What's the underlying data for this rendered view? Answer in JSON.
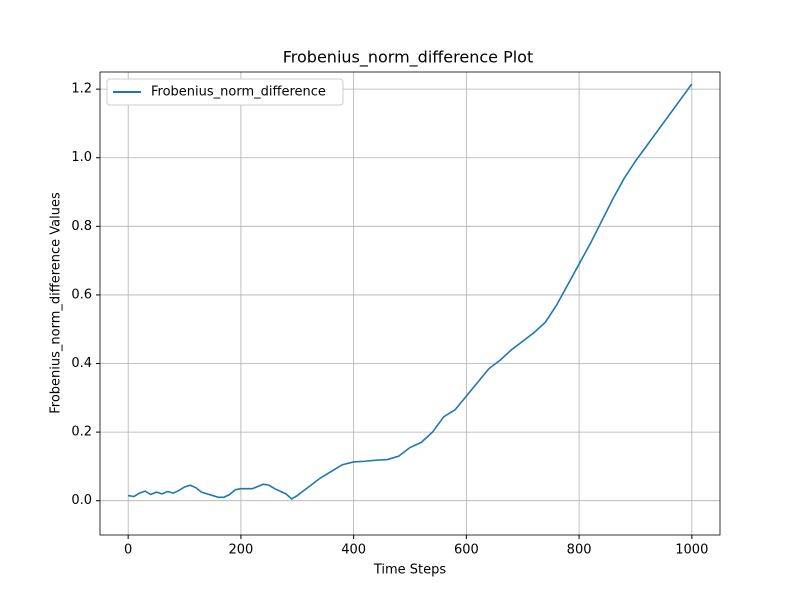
{
  "chart_data": {
    "type": "line",
    "title": "Frobenius_norm_difference Plot",
    "x_label": "Time Steps",
    "y_label": "Frobenius_norm_difference Values",
    "x": [
      0,
      10,
      20,
      30,
      40,
      50,
      60,
      70,
      80,
      90,
      100,
      110,
      120,
      130,
      140,
      150,
      160,
      170,
      180,
      190,
      200,
      220,
      240,
      250,
      260,
      280,
      290,
      300,
      320,
      340,
      360,
      380,
      400,
      420,
      440,
      460,
      480,
      500,
      520,
      540,
      560,
      580,
      600,
      620,
      640,
      660,
      680,
      700,
      720,
      740,
      760,
      780,
      800,
      820,
      840,
      860,
      880,
      900,
      920,
      940,
      960,
      980,
      1000
    ],
    "series": [
      {
        "name": "Frobenius_norm_difference",
        "color": "#1f77b4",
        "values": [
          0.015,
          0.012,
          0.022,
          0.028,
          0.018,
          0.025,
          0.02,
          0.027,
          0.022,
          0.03,
          0.04,
          0.045,
          0.038,
          0.025,
          0.02,
          0.015,
          0.01,
          0.01,
          0.018,
          0.032,
          0.035,
          0.035,
          0.048,
          0.045,
          0.035,
          0.02,
          0.005,
          0.015,
          0.04,
          0.065,
          0.085,
          0.105,
          0.113,
          0.115,
          0.118,
          0.12,
          0.13,
          0.155,
          0.17,
          0.2,
          0.245,
          0.265,
          0.305,
          0.345,
          0.385,
          0.41,
          0.44,
          0.465,
          0.49,
          0.52,
          0.57,
          0.63,
          0.69,
          0.75,
          0.815,
          0.88,
          0.94,
          0.99,
          1.035,
          1.08,
          1.125,
          1.17,
          1.215
        ]
      }
    ],
    "xlim": [
      -50,
      1050
    ],
    "ylim": [
      -0.1,
      1.25
    ],
    "xticks": [
      0,
      200,
      400,
      600,
      800,
      1000
    ],
    "yticks": [
      {
        "value": 0,
        "label": "0.0"
      },
      0.2,
      0.4,
      0.6,
      0.8,
      {
        "value": 1,
        "label": "1.0"
      },
      1.2
    ],
    "grid": true,
    "legend": "upper left"
  }
}
